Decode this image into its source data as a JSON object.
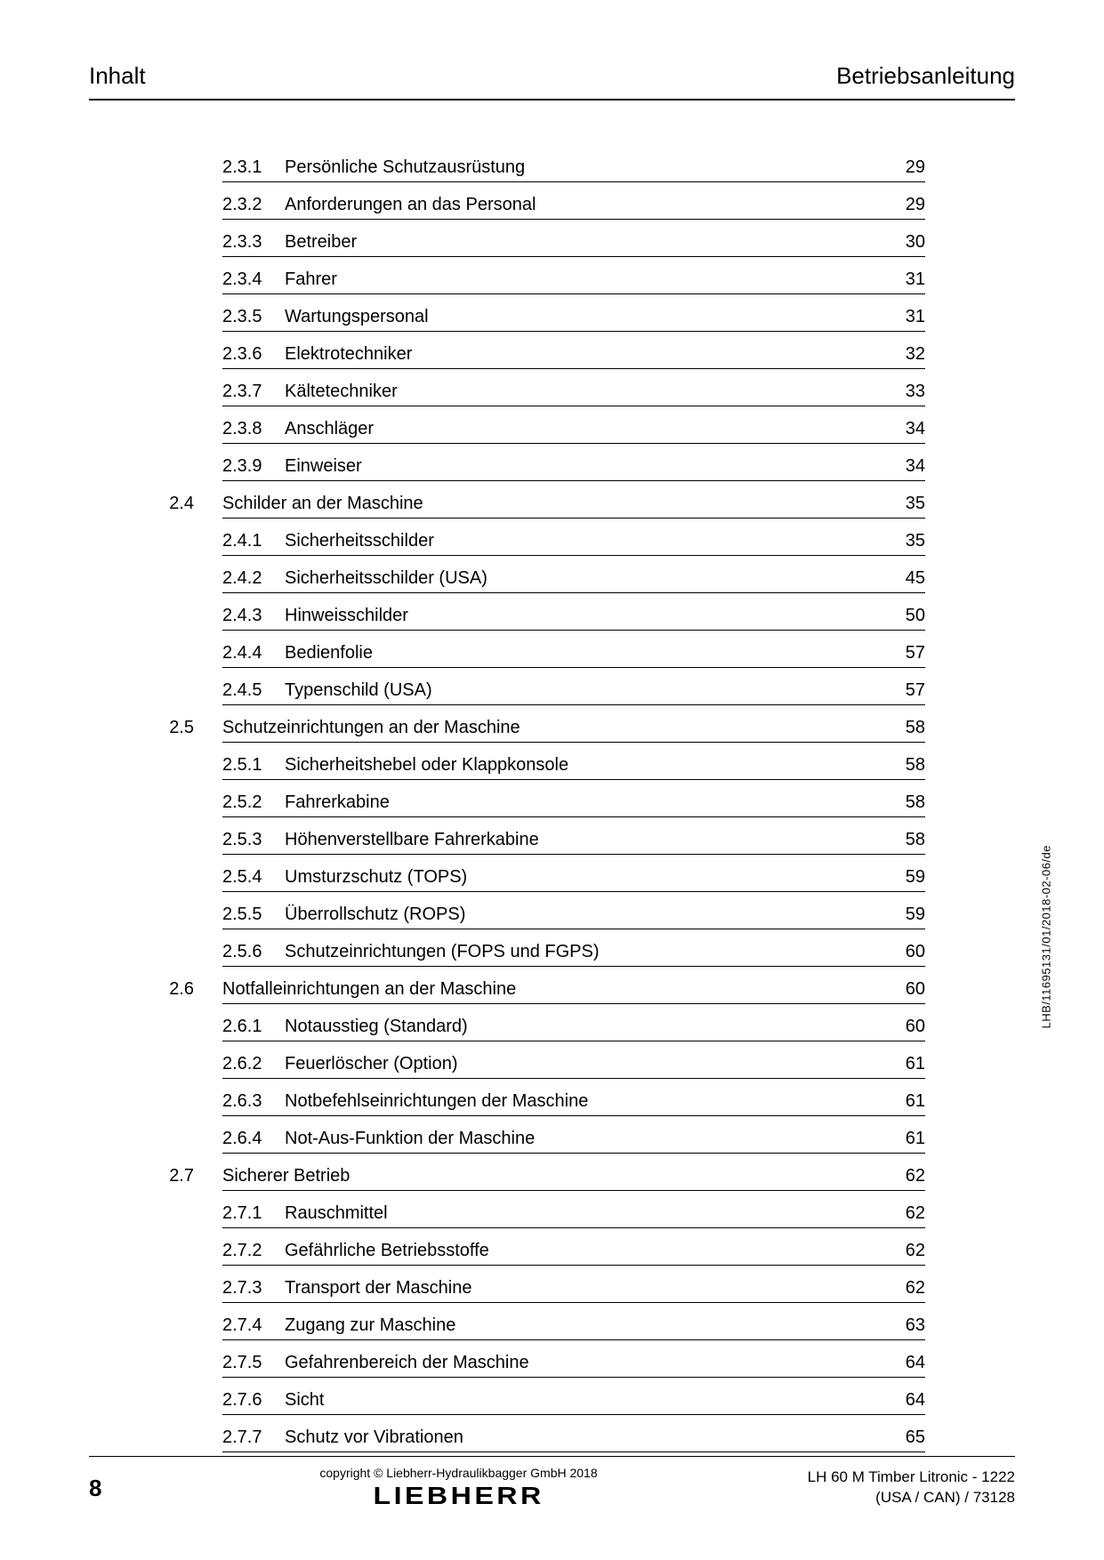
{
  "header": {
    "left": "Inhalt",
    "right": "Betriebsanleitung"
  },
  "side_code": "LHB/11695131/01/2018-02-06/de",
  "footer": {
    "page_number": "8",
    "copyright": "copyright © Liebherr-Hydraulikbagger GmbH 2018",
    "brand": "LIEBHERR",
    "model_line1": "LH 60 M Timber Litronic  - 1222",
    "model_line2": "(USA / CAN) / 73128"
  },
  "toc": [
    {
      "type": "sub",
      "num": "2.3.1",
      "title": "Persönliche Schutzausrüstung",
      "page": "29"
    },
    {
      "type": "sub",
      "num": "2.3.2",
      "title": "Anforderungen an das Personal",
      "page": "29"
    },
    {
      "type": "sub",
      "num": "2.3.3",
      "title": "Betreiber",
      "page": "30"
    },
    {
      "type": "sub",
      "num": "2.3.4",
      "title": "Fahrer",
      "page": "31"
    },
    {
      "type": "sub",
      "num": "2.3.5",
      "title": "Wartungspersonal",
      "page": "31"
    },
    {
      "type": "sub",
      "num": "2.3.6",
      "title": "Elektrotechniker",
      "page": "32"
    },
    {
      "type": "sub",
      "num": "2.3.7",
      "title": "Kältetechniker",
      "page": "33"
    },
    {
      "type": "sub",
      "num": "2.3.8",
      "title": "Anschläger",
      "page": "34"
    },
    {
      "type": "sub",
      "num": "2.3.9",
      "title": "Einweiser",
      "page": "34"
    },
    {
      "type": "sec",
      "num": "2.4",
      "title": "Schilder an der Maschine",
      "page": "35"
    },
    {
      "type": "sub",
      "num": "2.4.1",
      "title": "Sicherheitsschilder",
      "page": "35"
    },
    {
      "type": "sub",
      "num": "2.4.2",
      "title": "Sicherheitsschilder (USA)",
      "page": "45"
    },
    {
      "type": "sub",
      "num": "2.4.3",
      "title": "Hinweisschilder",
      "page": "50"
    },
    {
      "type": "sub",
      "num": "2.4.4",
      "title": "Bedienfolie",
      "page": "57"
    },
    {
      "type": "sub",
      "num": "2.4.5",
      "title": "Typenschild (USA)",
      "page": "57"
    },
    {
      "type": "sec",
      "num": "2.5",
      "title": "Schutzeinrichtungen an der Maschine",
      "page": "58"
    },
    {
      "type": "sub",
      "num": "2.5.1",
      "title": "Sicherheitshebel oder Klappkonsole",
      "page": "58"
    },
    {
      "type": "sub",
      "num": "2.5.2",
      "title": "Fahrerkabine",
      "page": "58"
    },
    {
      "type": "sub",
      "num": "2.5.3",
      "title": "Höhenverstellbare Fahrerkabine",
      "page": "58"
    },
    {
      "type": "sub",
      "num": "2.5.4",
      "title": "Umsturzschutz (TOPS)",
      "page": "59"
    },
    {
      "type": "sub",
      "num": "2.5.5",
      "title": "Überrollschutz (ROPS)",
      "page": "59"
    },
    {
      "type": "sub",
      "num": "2.5.6",
      "title": "Schutzeinrichtungen (FOPS und FGPS)",
      "page": "60"
    },
    {
      "type": "sec",
      "num": "2.6",
      "title": "Notfalleinrichtungen an der Maschine",
      "page": "60"
    },
    {
      "type": "sub",
      "num": "2.6.1",
      "title": "Notausstieg (Standard)",
      "page": "60"
    },
    {
      "type": "sub",
      "num": "2.6.2",
      "title": "Feuerlöscher (Option)",
      "page": "61"
    },
    {
      "type": "sub",
      "num": "2.6.3",
      "title": "Notbefehlseinrichtungen der Maschine",
      "page": "61"
    },
    {
      "type": "sub",
      "num": "2.6.4",
      "title": "Not-Aus-Funktion der Maschine",
      "page": "61"
    },
    {
      "type": "sec",
      "num": "2.7",
      "title": "Sicherer Betrieb",
      "page": "62"
    },
    {
      "type": "sub",
      "num": "2.7.1",
      "title": "Rauschmittel",
      "page": "62"
    },
    {
      "type": "sub",
      "num": "2.7.2",
      "title": "Gefährliche Betriebsstoffe",
      "page": "62"
    },
    {
      "type": "sub",
      "num": "2.7.3",
      "title": "Transport der Maschine",
      "page": "62"
    },
    {
      "type": "sub",
      "num": "2.7.4",
      "title": "Zugang zur Maschine",
      "page": "63"
    },
    {
      "type": "sub",
      "num": "2.7.5",
      "title": "Gefahrenbereich der Maschine",
      "page": "64"
    },
    {
      "type": "sub",
      "num": "2.7.6",
      "title": "Sicht",
      "page": "64"
    },
    {
      "type": "sub",
      "num": "2.7.7",
      "title": "Schutz vor Vibrationen",
      "page": "65"
    }
  ]
}
